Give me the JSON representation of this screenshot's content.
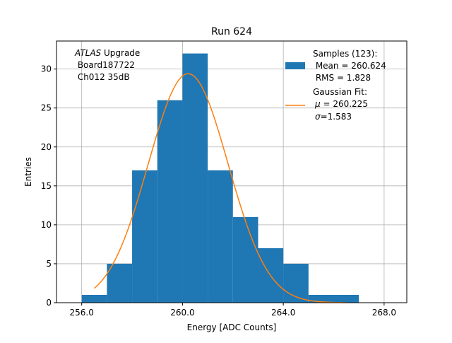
{
  "chart_data": {
    "type": "histogram",
    "title": "Run 624",
    "xlabel": "Energy [ADC Counts]",
    "ylabel": "Entries",
    "xlim": [
      255.0,
      268.9
    ],
    "ylim": [
      0,
      33.6
    ],
    "xticks": [
      256.0,
      260.0,
      264.0,
      268.0
    ],
    "xtick_labels": [
      "256.0",
      "260.0",
      "264.0",
      "268.0"
    ],
    "yticks": [
      0,
      5,
      10,
      15,
      20,
      25,
      30
    ],
    "ytick_labels": [
      "0",
      "5",
      "10",
      "15",
      "20",
      "25",
      "30"
    ],
    "grid": true,
    "bins": [
      {
        "x0": 256.0,
        "x1": 257.0,
        "count": 1
      },
      {
        "x0": 257.0,
        "x1": 258.0,
        "count": 5
      },
      {
        "x0": 258.0,
        "x1": 259.0,
        "count": 17
      },
      {
        "x0": 259.0,
        "x1": 260.0,
        "count": 26
      },
      {
        "x0": 260.0,
        "x1": 261.0,
        "count": 32
      },
      {
        "x0": 261.0,
        "x1": 262.0,
        "count": 17
      },
      {
        "x0": 262.0,
        "x1": 263.0,
        "count": 11
      },
      {
        "x0": 263.0,
        "x1": 264.0,
        "count": 7
      },
      {
        "x0": 264.0,
        "x1": 265.0,
        "count": 5
      },
      {
        "x0": 265.0,
        "x1": 266.0,
        "count": 1
      },
      {
        "x0": 266.0,
        "x1": 267.0,
        "count": 1
      }
    ],
    "fit": {
      "type": "gaussian",
      "mu": 260.225,
      "sigma": 1.583,
      "amplitude": 29.4,
      "x_range": [
        256.5,
        266.5
      ]
    },
    "annotation": {
      "experiment": "ATLAS",
      "experiment_suffix": " Upgrade",
      "board": " Board187722",
      "channel": " Ch012 35dB"
    },
    "legend": {
      "placement": "top-right",
      "samples_line1": "Samples (123):",
      "samples_line2": " Mean = 260.624",
      "samples_line3": " RMS = 1.828",
      "fit_line1": "Gaussian Fit:",
      "fit_mu_symbol": "μ",
      "fit_mu_value": " = 260.225",
      "fit_sigma_symbol": "σ",
      "fit_sigma_value": "=1.583"
    },
    "colors": {
      "bar": "#1f77b4",
      "fit": "#ff7f0e",
      "grid": "#b0b0b0",
      "axis": "#000000"
    }
  }
}
